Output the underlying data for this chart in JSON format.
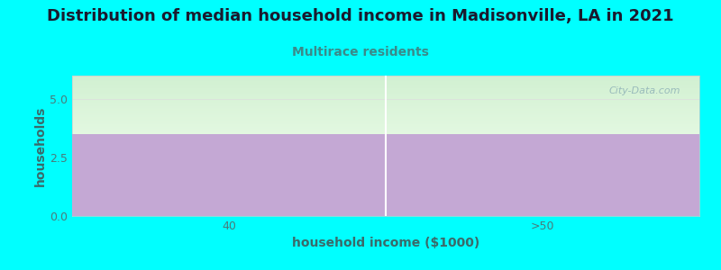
{
  "title": "Distribution of median household income in Madisonville, LA in 2021",
  "subtitle": "Multirace residents",
  "xlabel": "household income ($1000)",
  "ylabel": "households",
  "background_color": "#00FFFF",
  "bar_color": "#C4A8D4",
  "categories": [
    "40",
    ">50"
  ],
  "values": [
    3.5,
    3.5
  ],
  "ylim": [
    0,
    6
  ],
  "yticks": [
    0,
    2.5,
    5
  ],
  "title_fontsize": 13,
  "title_color": "#1a1a2e",
  "subtitle_fontsize": 10,
  "subtitle_color": "#3a8a8a",
  "axis_label_color": "#3a6a6a",
  "tick_color": "#4a7a7a",
  "tick_fontsize": 9,
  "watermark_text": "City-Data.com",
  "watermark_color": "#99BBBB",
  "plot_top_color": "#E8F5E8",
  "plot_bottom_color": "#F8FFF8",
  "divider_color": "#FFFFFF",
  "divider_linewidth": 1.5
}
